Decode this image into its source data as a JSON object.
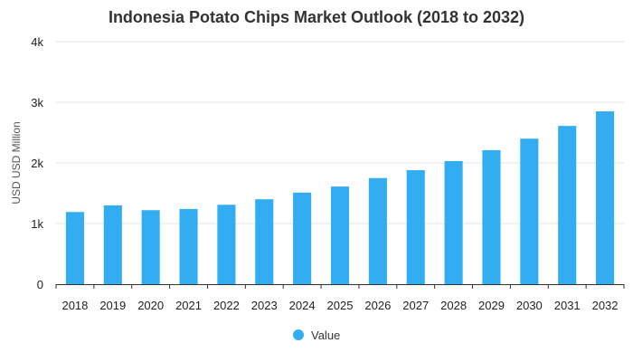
{
  "chart_data": {
    "type": "bar",
    "title": "Indonesia Potato Chips Market Outlook (2018 to 2032)",
    "xlabel": "",
    "ylabel": "USD USD Million",
    "ylim": [
      0,
      4000
    ],
    "yticks": [
      0,
      1000,
      2000,
      3000,
      4000
    ],
    "ytick_labels": [
      "0",
      "1k",
      "2k",
      "3k",
      "4k"
    ],
    "categories": [
      "2018",
      "2019",
      "2020",
      "2021",
      "2022",
      "2023",
      "2024",
      "2025",
      "2026",
      "2027",
      "2028",
      "2029",
      "2030",
      "2031",
      "2032"
    ],
    "series": [
      {
        "name": "Value",
        "color": "#33adf2",
        "values": [
          1190,
          1300,
          1220,
          1240,
          1310,
          1400,
          1510,
          1610,
          1750,
          1880,
          2030,
          2210,
          2400,
          2610,
          2850
        ]
      }
    ],
    "grid": true,
    "legend": "bottom-center"
  }
}
